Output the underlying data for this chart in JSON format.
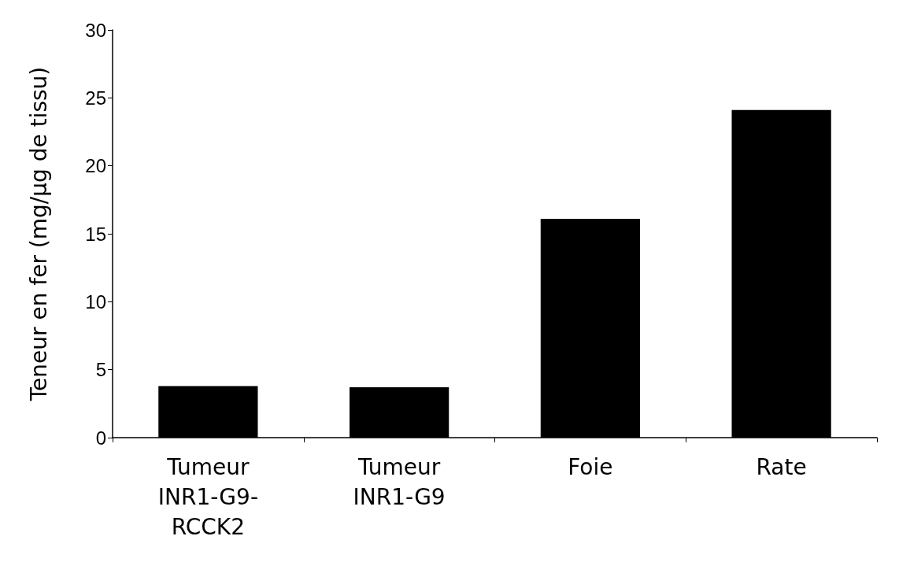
{
  "chart_data": {
    "type": "bar",
    "ylabel": "Teneur en fer (mg/µg de tissu)",
    "categories": [
      "Tumeur\nINR1-G9-\nRCCK2",
      "Tumeur\nINR1-G9",
      "Foie",
      "Rate"
    ],
    "values": [
      3.8,
      3.7,
      16.1,
      24.1
    ],
    "color": "#000000",
    "ylim": [
      0,
      30
    ],
    "yticks": [
      0,
      5,
      10,
      15,
      20,
      25,
      30
    ],
    "grid": false
  }
}
